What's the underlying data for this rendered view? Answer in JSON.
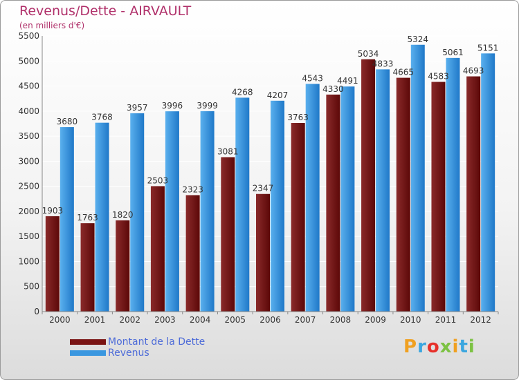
{
  "header": {
    "title": "Revenus/Dette - AIRVAULT",
    "subtitle": "(en milliers d'€)"
  },
  "legend": {
    "items": [
      {
        "label": "Montant de la Dette",
        "color": "#7a1414"
      },
      {
        "label": "Revenus",
        "color": "#3a97e0"
      }
    ]
  },
  "brand": {
    "letters": [
      "P",
      "r",
      "o",
      "x",
      "i",
      "t",
      "i"
    ],
    "colors": [
      "#f0a020",
      "#3aa6df",
      "#e7302a",
      "#7cc243",
      "#f0a020",
      "#3aa6df",
      "#7cc243"
    ]
  },
  "colors": {
    "title": "#b0306a",
    "debt_dark": "#5c0808",
    "debt_light": "#8a2a2a",
    "revenue_dark": "#1f78c8",
    "revenue_light": "#5ab0ee",
    "grid": "#ffffff",
    "axis_text": "#333333"
  },
  "chart_data": {
    "type": "bar",
    "categories": [
      "2000",
      "2001",
      "2002",
      "2003",
      "2004",
      "2005",
      "2006",
      "2007",
      "2008",
      "2009",
      "2010",
      "2011",
      "2012"
    ],
    "series": [
      {
        "name": "Montant de la Dette",
        "values": [
          1903,
          1763,
          1820,
          2503,
          2323,
          3081,
          2347,
          3763,
          4330,
          5034,
          4665,
          4583,
          4693
        ]
      },
      {
        "name": "Revenus",
        "values": [
          3680,
          3768,
          3957,
          3996,
          3999,
          4268,
          4207,
          4543,
          4491,
          4833,
          5324,
          5061,
          5151
        ]
      }
    ],
    "ylim": [
      0,
      5500
    ],
    "yticks": [
      0,
      500,
      1000,
      1500,
      2000,
      2500,
      3000,
      3500,
      4000,
      4500,
      5000,
      5500
    ],
    "grid": true,
    "legend_position": "bottom-left"
  }
}
